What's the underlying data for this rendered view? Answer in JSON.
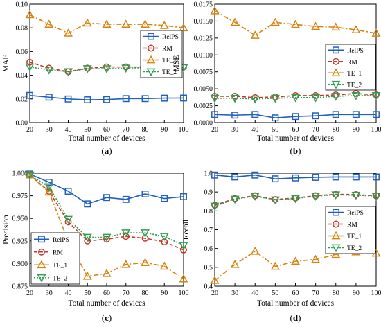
{
  "chart_data": [
    {
      "panel": "(a)",
      "type": "line",
      "x": [
        20,
        30,
        40,
        50,
        60,
        70,
        80,
        90,
        100
      ],
      "xlabel": "Total number of devices",
      "ylabel": "MAE",
      "xlim": [
        20,
        100
      ],
      "ylim": [
        0,
        0.1
      ],
      "xticks": [
        "20",
        "30",
        "40",
        "50",
        "60",
        "70",
        "80",
        "90",
        "100"
      ],
      "yticks": [
        "0.00",
        "0.02",
        "0.04",
        "0.06",
        "0.08",
        "0.10"
      ],
      "yticks_values": [
        0,
        0.02,
        0.04,
        0.06,
        0.08,
        0.1
      ],
      "legend_position": "right",
      "series": [
        {
          "name": "RelPS",
          "color": "#1f5fbf",
          "marker": "square",
          "dash": "solid",
          "values": [
            0.023,
            0.0215,
            0.02,
            0.0193,
            0.0195,
            0.0203,
            0.0203,
            0.0207,
            0.0208
          ]
        },
        {
          "name": "RM",
          "color": "#c0392b",
          "marker": "circle",
          "dash": "dashed",
          "values": [
            0.051,
            0.046,
            0.043,
            0.046,
            0.047,
            0.047,
            0.047,
            0.048,
            0.047
          ]
        },
        {
          "name": "TE_1",
          "color": "#d8820e",
          "marker": "triangle-up",
          "dash": "dashdot",
          "values": [
            0.091,
            0.083,
            0.0755,
            0.084,
            0.083,
            0.083,
            0.083,
            0.082,
            0.08
          ]
        },
        {
          "name": "TE_2",
          "color": "#2e9e4f",
          "marker": "triangle-down",
          "dash": "dotted",
          "values": [
            0.047,
            0.0445,
            0.043,
            0.0455,
            0.0455,
            0.046,
            0.0465,
            0.047,
            0.0465
          ]
        }
      ]
    },
    {
      "panel": "(b)",
      "type": "line",
      "x": [
        20,
        30,
        40,
        50,
        60,
        70,
        80,
        90,
        100
      ],
      "xlabel": "Total number of devices",
      "ylabel": "MSE",
      "xlim": [
        20,
        100
      ],
      "ylim": [
        0,
        0.0175
      ],
      "xticks": [
        "20",
        "30",
        "40",
        "50",
        "60",
        "70",
        "80",
        "90",
        "100"
      ],
      "yticks": [
        "0.0000",
        "0.0025",
        "0.0050",
        "0.0075",
        "0.0100",
        "0.0125",
        "0.0150",
        "0.0175"
      ],
      "yticks_values": [
        0,
        0.0025,
        0.005,
        0.0075,
        0.01,
        0.0125,
        0.015,
        0.0175
      ],
      "legend_position": "right",
      "series": [
        {
          "name": "RelPS",
          "color": "#1f5fbf",
          "marker": "square",
          "dash": "solid",
          "values": [
            0.0012,
            0.0011,
            0.0012,
            0.0007,
            0.0009,
            0.001,
            0.0012,
            0.0012,
            0.0012
          ]
        },
        {
          "name": "RM",
          "color": "#c0392b",
          "marker": "circle",
          "dash": "dashed",
          "values": [
            0.0039,
            0.0039,
            0.0037,
            0.0038,
            0.004,
            0.004,
            0.0041,
            0.0043,
            0.0041
          ]
        },
        {
          "name": "TE_1",
          "color": "#d8820e",
          "marker": "triangle-up",
          "dash": "dashdot",
          "values": [
            0.0165,
            0.0148,
            0.0129,
            0.0148,
            0.0145,
            0.0142,
            0.0141,
            0.0137,
            0.0132
          ]
        },
        {
          "name": "TE_2",
          "color": "#2e9e4f",
          "marker": "triangle-down",
          "dash": "dotted",
          "values": [
            0.0036,
            0.0036,
            0.0035,
            0.0036,
            0.0037,
            0.0037,
            0.0039,
            0.004,
            0.004
          ]
        }
      ]
    },
    {
      "panel": "(c)",
      "type": "line",
      "x": [
        20,
        30,
        40,
        50,
        60,
        70,
        80,
        90,
        100
      ],
      "xlabel": "Total number of devices",
      "ylabel": "Precision",
      "xlim": [
        20,
        100
      ],
      "ylim": [
        0.875,
        1.0
      ],
      "xticks": [
        "20",
        "30",
        "40",
        "50",
        "60",
        "70",
        "80",
        "90",
        "100"
      ],
      "yticks": [
        "0.875",
        "0.900",
        "0.925",
        "0.950",
        "0.975",
        "1.000"
      ],
      "yticks_values": [
        0.875,
        0.9,
        0.925,
        0.95,
        0.975,
        1.0
      ],
      "legend_position": "left",
      "series": [
        {
          "name": "RelPS",
          "color": "#1f5fbf",
          "marker": "square",
          "dash": "solid",
          "values": [
            0.999,
            0.99,
            0.98,
            0.966,
            0.973,
            0.971,
            0.977,
            0.972,
            0.974
          ]
        },
        {
          "name": "RM",
          "color": "#c0392b",
          "marker": "circle",
          "dash": "dashed",
          "values": [
            0.998,
            0.98,
            0.946,
            0.925,
            0.927,
            0.93,
            0.928,
            0.924,
            0.915
          ]
        },
        {
          "name": "TE_1",
          "color": "#d8820e",
          "marker": "triangle-up",
          "dash": "dashdot",
          "values": [
            0.998,
            0.979,
            0.925,
            0.886,
            0.889,
            0.899,
            0.901,
            0.897,
            0.883
          ]
        },
        {
          "name": "TE_2",
          "color": "#2e9e4f",
          "marker": "triangle-down",
          "dash": "dotted",
          "values": [
            0.998,
            0.985,
            0.949,
            0.929,
            0.929,
            0.934,
            0.934,
            0.93,
            0.92
          ]
        }
      ]
    },
    {
      "panel": "(d)",
      "type": "line",
      "x": [
        20,
        30,
        40,
        50,
        60,
        70,
        80,
        90,
        100
      ],
      "xlabel": "Total number of devices",
      "ylabel": "Recall",
      "xlim": [
        20,
        100
      ],
      "ylim": [
        0.4,
        1.0
      ],
      "xticks": [
        "20",
        "30",
        "40",
        "50",
        "60",
        "70",
        "80",
        "90",
        "100"
      ],
      "yticks": [
        "0.4",
        "0.5",
        "0.6",
        "0.7",
        "0.8",
        "0.9",
        "1.0"
      ],
      "yticks_values": [
        0.4,
        0.5,
        0.6,
        0.7,
        0.8,
        0.9,
        1.0
      ],
      "legend_position": "right",
      "series": [
        {
          "name": "RelPS",
          "color": "#1f5fbf",
          "marker": "square",
          "dash": "solid",
          "values": [
            0.99,
            0.98,
            0.99,
            0.97,
            0.975,
            0.978,
            0.98,
            0.98,
            0.98
          ]
        },
        {
          "name": "RM",
          "color": "#c0392b",
          "marker": "circle",
          "dash": "dashed",
          "values": [
            0.83,
            0.865,
            0.88,
            0.86,
            0.868,
            0.88,
            0.888,
            0.886,
            0.88
          ]
        },
        {
          "name": "TE_1",
          "color": "#d8820e",
          "marker": "triangle-up",
          "dash": "dashdot",
          "values": [
            0.43,
            0.515,
            0.585,
            0.505,
            0.532,
            0.542,
            0.568,
            0.582,
            0.575
          ]
        },
        {
          "name": "TE_2",
          "color": "#2e9e4f",
          "marker": "triangle-down",
          "dash": "dotted",
          "values": [
            0.825,
            0.862,
            0.878,
            0.858,
            0.865,
            0.878,
            0.885,
            0.883,
            0.878
          ]
        }
      ]
    }
  ]
}
